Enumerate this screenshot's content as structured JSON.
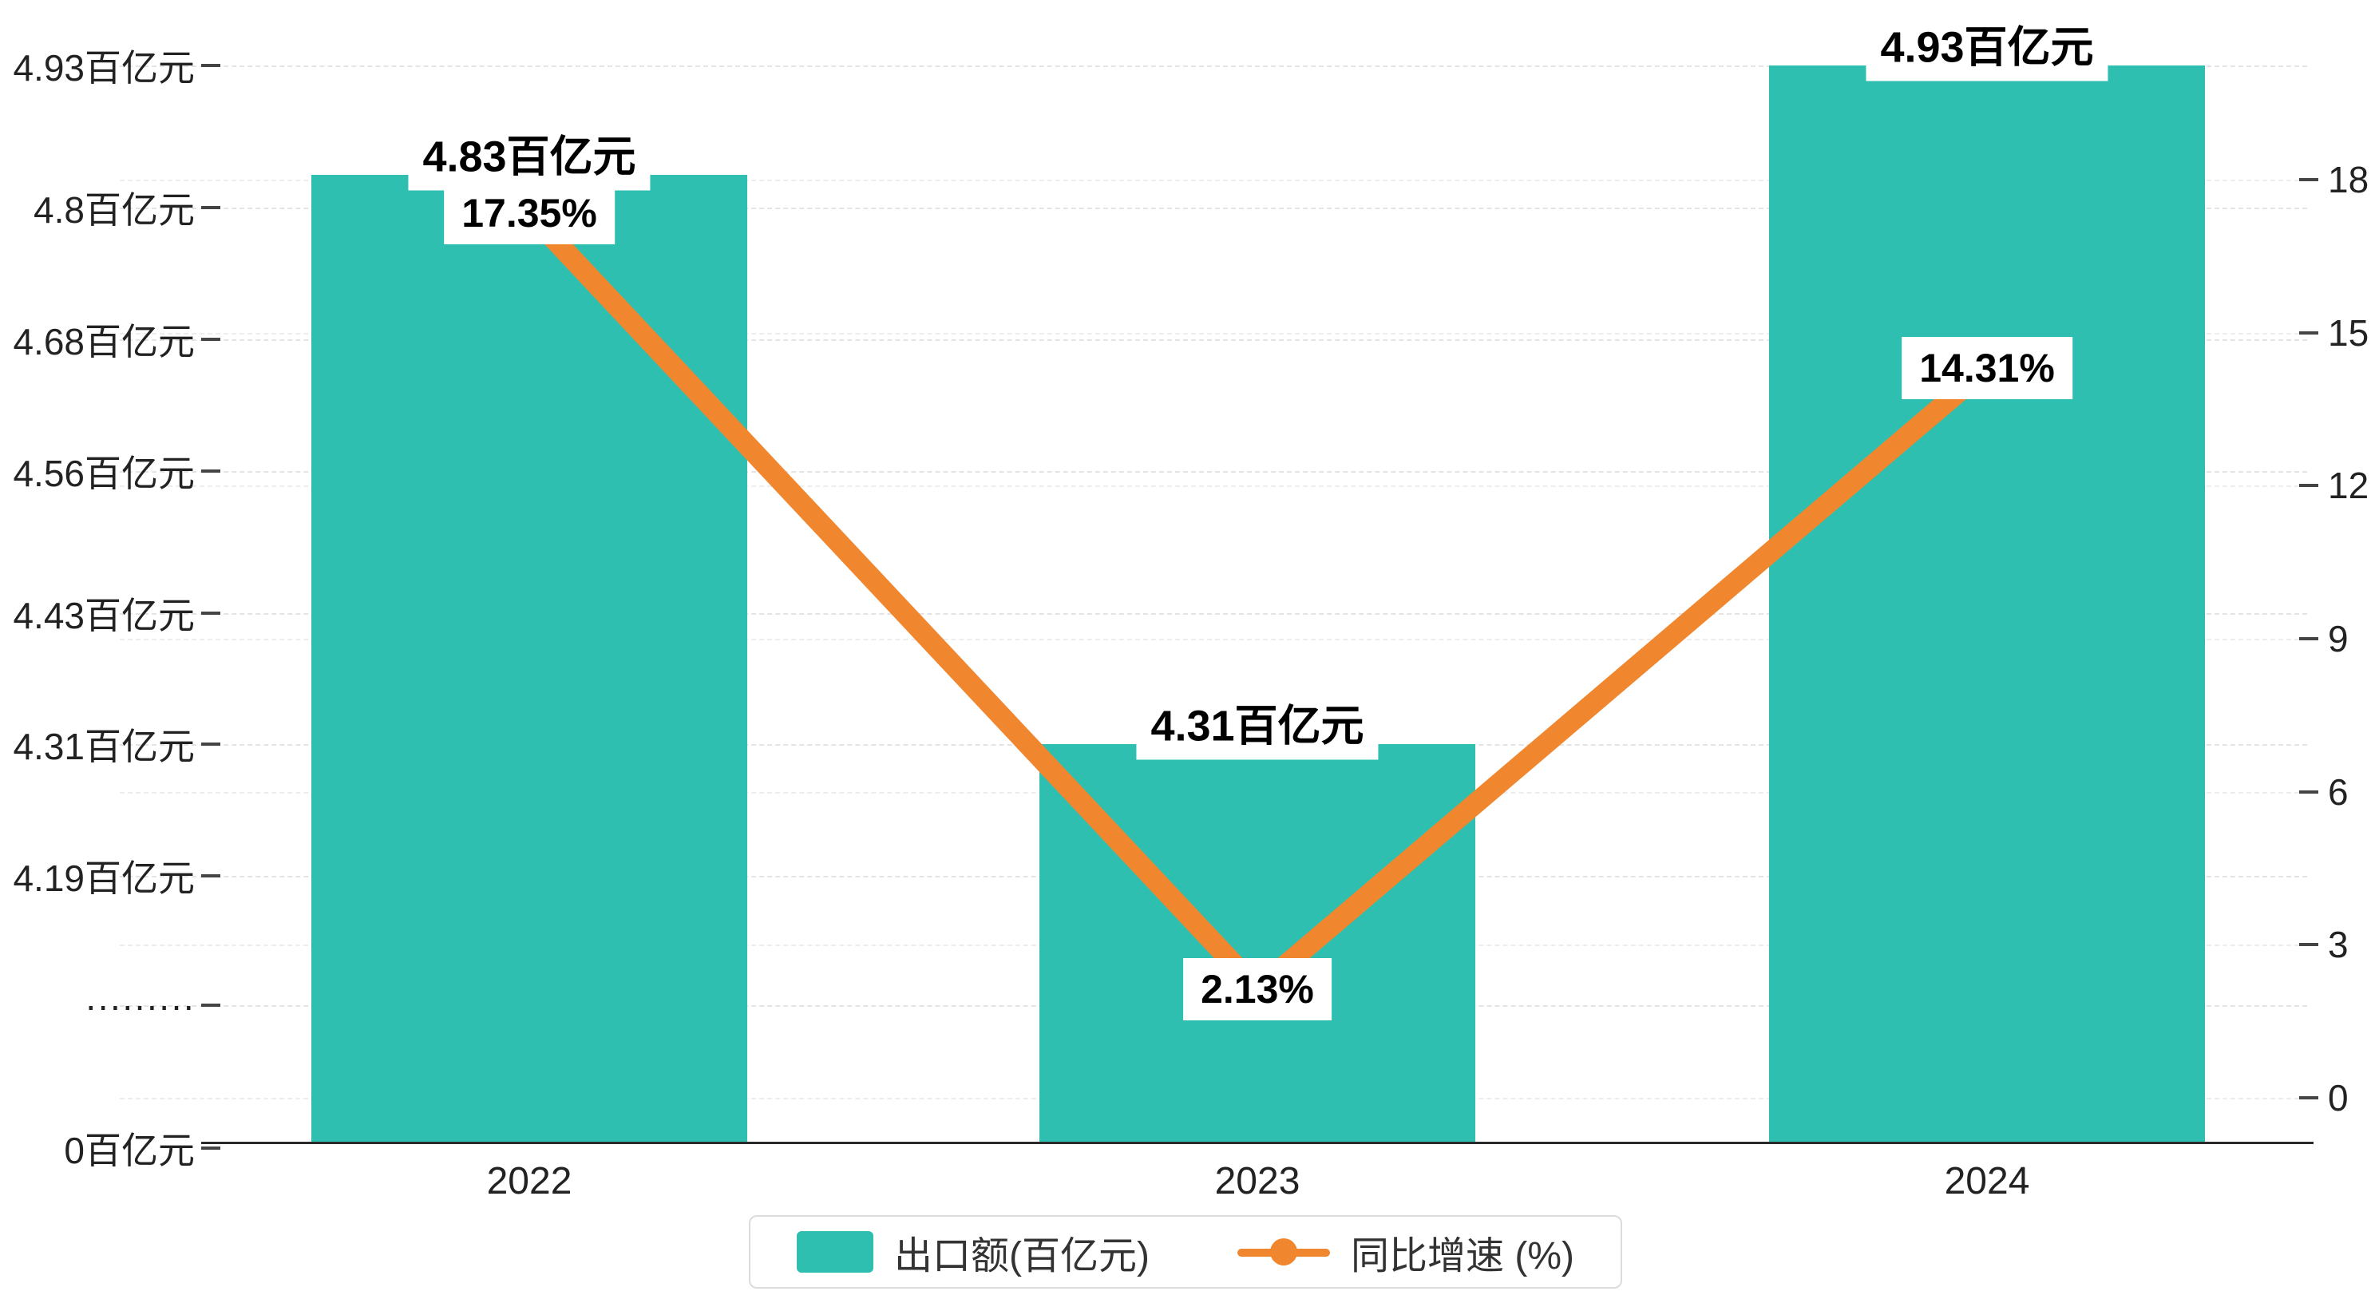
{
  "chart_data": {
    "type": "bar+line",
    "title": "",
    "categories": [
      "2022",
      "2023",
      "2024"
    ],
    "series": [
      {
        "name": "出口额(百亿元)",
        "type": "bar",
        "values": [
          4.83,
          4.31,
          4.93
        ],
        "labels": [
          "4.83百亿元",
          "4.31百亿元",
          "4.93百亿元"
        ],
        "color": "#2ebfb0"
      },
      {
        "name": "同比增速 (%)",
        "type": "line",
        "values": [
          17.35,
          2.13,
          14.31
        ],
        "labels": [
          "17.35%",
          "2.13%",
          "14.31%"
        ],
        "color": "#f0872f"
      }
    ],
    "left_axis": {
      "ticks": [
        {
          "value": 4.93,
          "label": "4.93百亿元"
        },
        {
          "value": 4.8,
          "label": "4.8百亿元"
        },
        {
          "value": 4.68,
          "label": "4.68百亿元"
        },
        {
          "value": 4.56,
          "label": "4.56百亿元"
        },
        {
          "value": 4.43,
          "label": "4.43百亿元"
        },
        {
          "value": 4.31,
          "label": "4.31百亿元"
        },
        {
          "value": 4.19,
          "label": "4.19百亿元"
        }
      ],
      "break_label": "·········",
      "zero_label": "0百亿元",
      "has_break": true
    },
    "right_axis": {
      "ticks": [
        18,
        15,
        12,
        9,
        6,
        3,
        0
      ],
      "max": 18,
      "min": 0
    },
    "legend": {
      "items": [
        "出口额(百亿元)",
        "同比增速 (%)"
      ],
      "position": "bottom-center"
    },
    "grid": "dashed-horizontal",
    "colors": {
      "bar": "#2ebfb0",
      "line": "#f0872f",
      "grid": "#e4e4e4",
      "axis": "#2b2b2b",
      "label_bg": "#ffffff"
    }
  }
}
